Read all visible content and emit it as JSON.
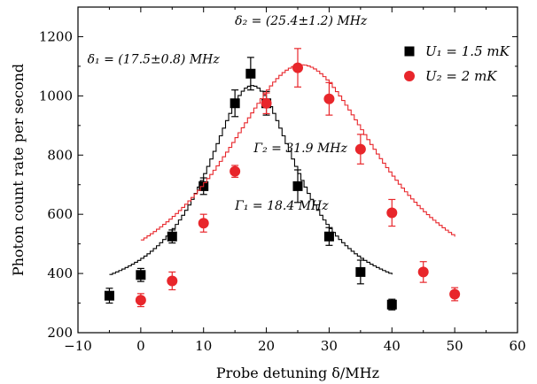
{
  "chart_data": {
    "type": "scatter",
    "xlabel": "Probe detuning δ/MHz",
    "ylabel": "Photon count rate per second",
    "xlim": [
      -10,
      60
    ],
    "ylim": [
      200,
      1300
    ],
    "xticks": [
      -10,
      0,
      10,
      20,
      30,
      40,
      50,
      60
    ],
    "yticks": [
      200,
      400,
      600,
      800,
      1000,
      1200
    ],
    "xtick_labels": [
      "−10",
      "0",
      "10",
      "20",
      "30",
      "40",
      "50",
      "60"
    ],
    "ytick_labels": [
      "200",
      "400",
      "600",
      "800",
      "1000",
      "1200"
    ],
    "legend_position": "top-right",
    "grid": false,
    "series": [
      {
        "name": "U₁ = 1.5 mK",
        "marker": "square",
        "color": "#000000",
        "x": [
          -5,
          0,
          5,
          10,
          15,
          17.5,
          20,
          25,
          30,
          35,
          40
        ],
        "y": [
          325,
          395,
          525,
          695,
          975,
          1075,
          975,
          695,
          525,
          405,
          295
        ],
        "err": [
          25,
          22,
          22,
          28,
          45,
          55,
          40,
          55,
          30,
          40,
          18
        ],
        "fit": {
          "center": 17.5,
          "width": 18.4,
          "peak": 1035,
          "offset": 290,
          "x_range": [
            -5,
            40
          ]
        }
      },
      {
        "name": "U₂ = 2 mK",
        "marker": "circle",
        "color": "#e8262b",
        "x": [
          0,
          5,
          10,
          15,
          20,
          25,
          30,
          35,
          40,
          45,
          50
        ],
        "y": [
          310,
          375,
          570,
          745,
          975,
          1095,
          990,
          820,
          605,
          405,
          330
        ],
        "err": [
          22,
          30,
          30,
          20,
          35,
          65,
          55,
          50,
          45,
          35,
          22
        ],
        "fit": {
          "center": 25.4,
          "width": 31.9,
          "peak": 1105,
          "offset": 280,
          "x_range": [
            0,
            50
          ]
        }
      }
    ],
    "annotations": [
      {
        "text": "δ₂ = (25.4±1.2) MHz",
        "x": 15,
        "y": 1240
      },
      {
        "text": "δ₁ = (17.5±0.8) MHz",
        "x": -8.5,
        "y": 1110
      },
      {
        "text": "Γ₂ = 31.9 MHz",
        "x": 18,
        "y": 810
      },
      {
        "text": "Γ₁ = 18.4 MHz",
        "x": 15,
        "y": 615
      }
    ]
  }
}
